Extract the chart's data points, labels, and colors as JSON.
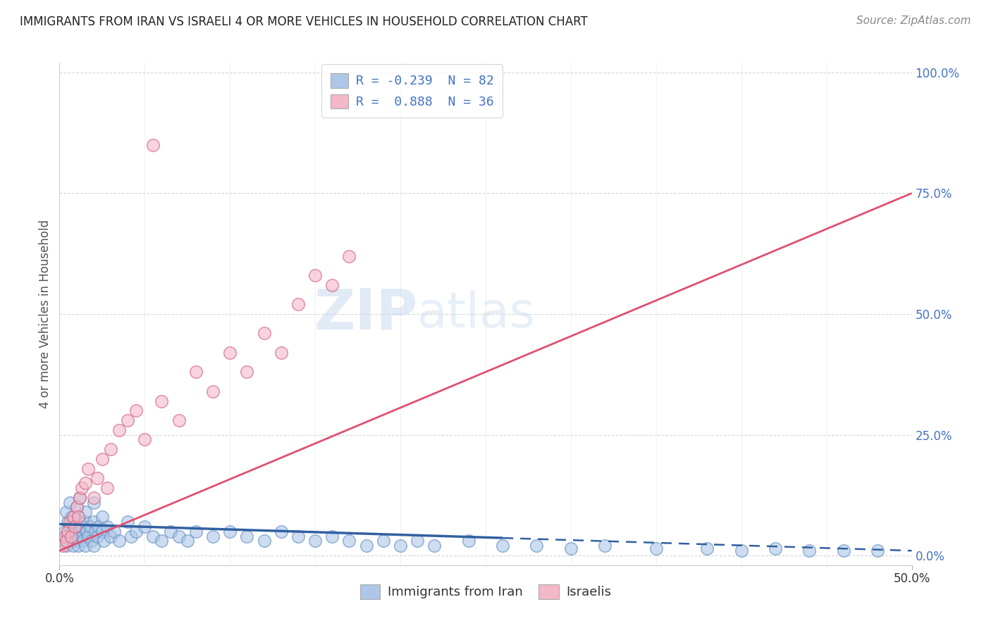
{
  "title": "IMMIGRANTS FROM IRAN VS ISRAELI 4 OR MORE VEHICLES IN HOUSEHOLD CORRELATION CHART",
  "source": "Source: ZipAtlas.com",
  "ylabel": "4 or more Vehicles in Household",
  "y_tick_vals": [
    0,
    25,
    50,
    75,
    100
  ],
  "legend1_label": "R = -0.239  N = 82",
  "legend2_label": "R =  0.888  N = 36",
  "legend_bottom": "Immigrants from Iran",
  "legend_bottom2": "Israelis",
  "blue_color": "#aec6e8",
  "pink_color": "#f4b8c8",
  "blue_edge_color": "#6090c0",
  "pink_edge_color": "#d06080",
  "blue_line_color": "#3060a0",
  "pink_line_color": "#e05070",
  "blue_scatter_x": [
    0.2,
    0.3,
    0.4,
    0.5,
    0.5,
    0.6,
    0.7,
    0.7,
    0.8,
    0.8,
    0.9,
    0.9,
    1.0,
    1.0,
    1.1,
    1.1,
    1.2,
    1.2,
    1.3,
    1.3,
    1.4,
    1.5,
    1.5,
    1.6,
    1.7,
    1.8,
    1.9,
    2.0,
    2.0,
    2.1,
    2.2,
    2.3,
    2.5,
    2.6,
    2.8,
    3.0,
    3.2,
    3.5,
    4.0,
    4.2,
    4.5,
    5.0,
    5.5,
    6.0,
    6.5,
    7.0,
    7.5,
    8.0,
    9.0,
    10.0,
    11.0,
    12.0,
    13.0,
    14.0,
    15.0,
    16.0,
    17.0,
    18.0,
    19.0,
    20.0,
    21.0,
    22.0,
    24.0,
    26.0,
    28.0,
    30.0,
    32.0,
    35.0,
    38.0,
    40.0,
    42.0,
    44.0,
    46.0,
    48.0,
    0.4,
    0.6,
    0.8,
    1.0,
    1.2,
    1.5,
    2.0,
    2.5
  ],
  "blue_scatter_y": [
    3.0,
    5.0,
    2.0,
    7.0,
    4.0,
    6.0,
    3.0,
    8.0,
    5.0,
    2.0,
    7.0,
    4.0,
    6.0,
    3.0,
    8.0,
    2.0,
    5.0,
    7.0,
    4.0,
    6.0,
    3.0,
    7.0,
    2.0,
    5.0,
    4.0,
    6.0,
    3.0,
    7.0,
    2.0,
    5.0,
    4.0,
    6.0,
    5.0,
    3.0,
    6.0,
    4.0,
    5.0,
    3.0,
    7.0,
    4.0,
    5.0,
    6.0,
    4.0,
    3.0,
    5.0,
    4.0,
    3.0,
    5.0,
    4.0,
    5.0,
    4.0,
    3.0,
    5.0,
    4.0,
    3.0,
    4.0,
    3.0,
    2.0,
    3.0,
    2.0,
    3.0,
    2.0,
    3.0,
    2.0,
    2.0,
    1.5,
    2.0,
    1.5,
    1.5,
    1.0,
    1.5,
    1.0,
    1.0,
    1.0,
    9.0,
    11.0,
    8.0,
    10.0,
    12.0,
    9.0,
    11.0,
    8.0
  ],
  "pink_scatter_x": [
    0.2,
    0.3,
    0.4,
    0.5,
    0.6,
    0.7,
    0.8,
    0.9,
    1.0,
    1.1,
    1.2,
    1.3,
    1.5,
    1.7,
    2.0,
    2.2,
    2.5,
    2.8,
    3.0,
    3.5,
    4.0,
    4.5,
    5.0,
    5.5,
    6.0,
    7.0,
    8.0,
    9.0,
    10.0,
    11.0,
    12.0,
    13.0,
    14.0,
    15.0,
    16.0,
    17.0
  ],
  "pink_scatter_y": [
    2.0,
    4.0,
    3.0,
    5.0,
    7.0,
    4.0,
    8.0,
    6.0,
    10.0,
    8.0,
    12.0,
    14.0,
    15.0,
    18.0,
    12.0,
    16.0,
    20.0,
    14.0,
    22.0,
    26.0,
    28.0,
    30.0,
    24.0,
    85.0,
    32.0,
    28.0,
    38.0,
    34.0,
    42.0,
    38.0,
    46.0,
    42.0,
    52.0,
    58.0,
    56.0,
    62.0
  ],
  "blue_trend_x0": 0.0,
  "blue_trend_y0": 6.5,
  "blue_trend_x1": 50.0,
  "blue_trend_y1": 1.0,
  "blue_solid_end": 26.0,
  "pink_trend_x0": 0.0,
  "pink_trend_y0": 1.0,
  "pink_trend_x1": 50.0,
  "pink_trend_y1": 75.0,
  "pink_solid_end": 17.0,
  "watermark_zip": "ZIP",
  "watermark_atlas": "atlas",
  "bg_color": "#ffffff",
  "grid_color": "#cccccc",
  "xlim": [
    0,
    50
  ],
  "ylim": [
    -2,
    102
  ],
  "title_fontsize": 12,
  "source_fontsize": 11,
  "tick_fontsize": 12,
  "ylabel_fontsize": 12
}
